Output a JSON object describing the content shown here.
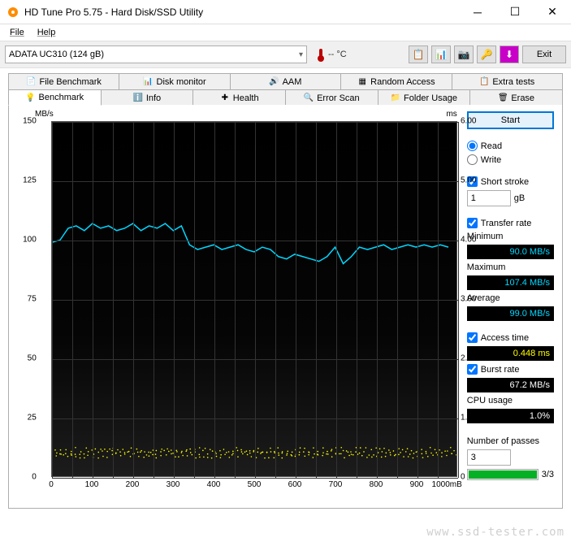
{
  "window": {
    "title": "HD Tune Pro 5.75 - Hard Disk/SSD Utility"
  },
  "menu": {
    "file": "File",
    "help": "Help"
  },
  "toolbar": {
    "device": "ADATA   UC310 (124 gB)",
    "temp": "-- °C",
    "exit": "Exit"
  },
  "tabs_row1": [
    {
      "label": "File Benchmark",
      "icon": "📄"
    },
    {
      "label": "Disk monitor",
      "icon": "📊"
    },
    {
      "label": "AAM",
      "icon": "🔊"
    },
    {
      "label": "Random Access",
      "icon": "▦"
    },
    {
      "label": "Extra tests",
      "icon": "📋"
    }
  ],
  "tabs_row2": [
    {
      "label": "Benchmark",
      "icon": "💡",
      "active": true
    },
    {
      "label": "Info",
      "icon": "ℹ️"
    },
    {
      "label": "Health",
      "icon": "✚"
    },
    {
      "label": "Error Scan",
      "icon": "🔍"
    },
    {
      "label": "Folder Usage",
      "icon": "📁"
    },
    {
      "label": "Erase",
      "icon": "🗑"
    }
  ],
  "chart": {
    "y_left_label": "MB/s",
    "y_right_label": "ms",
    "y_left_ticks": [
      150,
      125,
      100,
      75,
      50,
      25,
      0
    ],
    "y_right_ticks": [
      "6.00",
      "5.00",
      "4.00",
      "3.00",
      "2.00",
      "1.00",
      "0"
    ],
    "x_ticks": [
      0,
      100,
      200,
      300,
      400,
      500,
      600,
      700,
      800,
      900
    ],
    "x_unit_label": "1000mB",
    "line_color": "#00d8ff",
    "scatter_color": "#ffff00",
    "transfer_data": [
      [
        0,
        99
      ],
      [
        20,
        100
      ],
      [
        40,
        105
      ],
      [
        60,
        106
      ],
      [
        80,
        104
      ],
      [
        100,
        107
      ],
      [
        120,
        105
      ],
      [
        140,
        106
      ],
      [
        160,
        104
      ],
      [
        180,
        105
      ],
      [
        200,
        107
      ],
      [
        220,
        104
      ],
      [
        240,
        106
      ],
      [
        260,
        105
      ],
      [
        280,
        107
      ],
      [
        300,
        104
      ],
      [
        320,
        106
      ],
      [
        340,
        98
      ],
      [
        360,
        96
      ],
      [
        380,
        97
      ],
      [
        400,
        98
      ],
      [
        420,
        96
      ],
      [
        440,
        97
      ],
      [
        460,
        98
      ],
      [
        480,
        96
      ],
      [
        500,
        95
      ],
      [
        520,
        97
      ],
      [
        540,
        96
      ],
      [
        560,
        93
      ],
      [
        580,
        92
      ],
      [
        600,
        94
      ],
      [
        620,
        93
      ],
      [
        640,
        92
      ],
      [
        660,
        91
      ],
      [
        680,
        93
      ],
      [
        700,
        97
      ],
      [
        720,
        90
      ],
      [
        740,
        93
      ],
      [
        760,
        97
      ],
      [
        780,
        96
      ],
      [
        800,
        97
      ],
      [
        820,
        98
      ],
      [
        840,
        96
      ],
      [
        860,
        97
      ],
      [
        880,
        98
      ],
      [
        900,
        97
      ],
      [
        920,
        98
      ],
      [
        940,
        97
      ],
      [
        960,
        98
      ],
      [
        980,
        97
      ]
    ],
    "access_bands": [
      0.45,
      0.4,
      0.35
    ],
    "x_max": 1000,
    "y_left_max": 150,
    "y_right_max": 6.0
  },
  "side": {
    "start": "Start",
    "read": "Read",
    "write": "Write",
    "short_stroke": "Short stroke",
    "short_value": "1",
    "short_unit": "gB",
    "transfer_rate": "Transfer rate",
    "min_label": "Minimum",
    "min_val": "90.0 MB/s",
    "max_label": "Maximum",
    "max_val": "107.4 MB/s",
    "avg_label": "Average",
    "avg_val": "99.0 MB/s",
    "access_label": "Access time",
    "access_val": "0.448 ms",
    "burst_label": "Burst rate",
    "burst_val": "67.2 MB/s",
    "cpu_label": "CPU usage",
    "cpu_val": "1.0%",
    "passes_label": "Number of passes",
    "passes_val": "3",
    "passes_prog": "3/3"
  },
  "watermark": "www.ssd-tester.com"
}
